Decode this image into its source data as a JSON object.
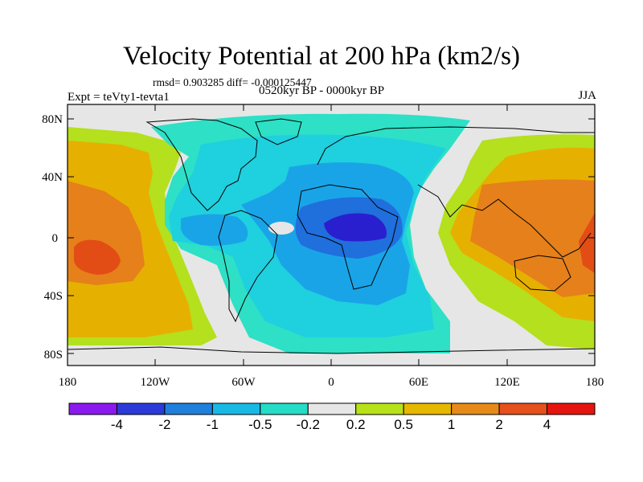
{
  "title": "Velocity Potential at 200 hPa (km2/s)",
  "stats": "rmsd= 0.903285 diff= -0.000125447",
  "experiment": "Expt = teVty1-tevta1",
  "period": "0520kyr BP - 0000kyr BP",
  "season": "JJA",
  "lat_labels": [
    "80N",
    "40N",
    "0",
    "40S",
    "80S"
  ],
  "lon_labels": [
    "180",
    "120W",
    "60W",
    "0",
    "60E",
    "120E",
    "180"
  ],
  "colorbar": {
    "labels": [
      "-4",
      "-2",
      "-1",
      "-0.5",
      "-0.2",
      "0.2",
      "0.5",
      "1",
      "2",
      "4"
    ],
    "colors": [
      "#8b1aef",
      "#2b3bd8",
      "#1f7fdc",
      "#19b9e6",
      "#25dcc6",
      "#e6e6e6",
      "#b7e21a",
      "#e6b800",
      "#e68a1a",
      "#e6501a",
      "#e6140f"
    ]
  },
  "field_colors": {
    "neg4": "#2a1fcf",
    "neg2": "#1f6fdc",
    "neg1": "#1aa4e8",
    "neg05": "#1fd0df",
    "neg02": "#2de0c6",
    "zero": "#e6e6e6",
    "pos02": "#b4e01e",
    "pos05": "#e6b000",
    "pos1": "#e6801a",
    "pos2": "#e24d16"
  }
}
